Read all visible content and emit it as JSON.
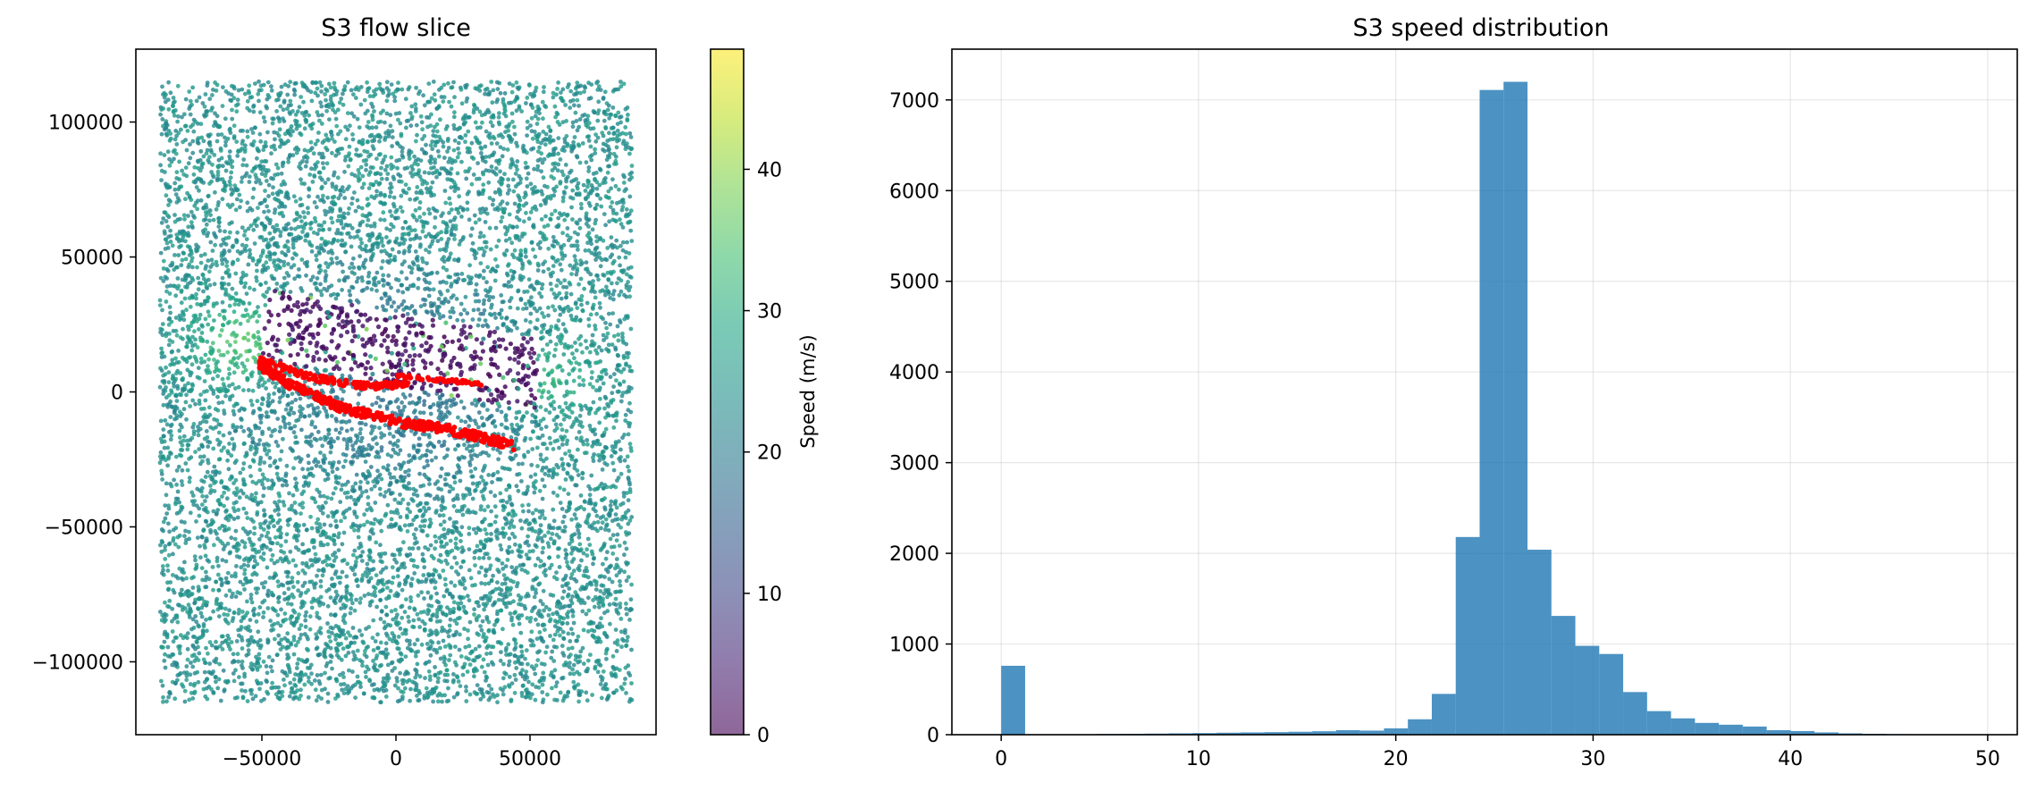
{
  "chart_data": [
    {
      "type": "scatter",
      "title": "S3 flow slice",
      "xlabel": "",
      "ylabel": "",
      "xlim": [
        -97000,
        97000
      ],
      "ylim": [
        -127000,
        127000
      ],
      "xticks": [
        -50000,
        0,
        50000
      ],
      "xtick_labels": [
        "−50000",
        "0",
        "50000"
      ],
      "yticks": [
        -100000,
        -50000,
        0,
        50000,
        100000
      ],
      "ytick_labels": [
        "−100000",
        "−50000",
        "0",
        "50000",
        "100000"
      ],
      "domain_x": [
        -88000,
        88000
      ],
      "domain_y": [
        -115000,
        115000
      ],
      "colorbar": {
        "label": "Speed (m/s)",
        "range": [
          0,
          48.5
        ],
        "ticks": [
          0,
          10,
          20,
          30,
          40
        ],
        "tick_labels": [
          "0",
          "10",
          "20",
          "30",
          "40"
        ],
        "colormap": "viridis",
        "alpha": 0.6
      },
      "point_count_approx": 20000,
      "body_region": {
        "name": "S3 body (low-speed points)",
        "corners": [
          [
            -47000,
            38000
          ],
          [
            53000,
            20000
          ],
          [
            52000,
            -8000
          ],
          [
            -51000,
            13000
          ]
        ],
        "speed_range": [
          0,
          5
        ]
      },
      "surface_series": {
        "name": "surface points",
        "color": "#ff0000",
        "lower_edge": [
          [
            -51000,
            10000
          ],
          [
            -40000,
            3000
          ],
          [
            -20000,
            -6000
          ],
          [
            0,
            -11000
          ],
          [
            20000,
            -14000
          ],
          [
            44000,
            -20000
          ]
        ],
        "upper_edge": [
          [
            -51000,
            12000
          ],
          [
            -30000,
            5000
          ],
          [
            -10000,
            2000
          ],
          [
            5000,
            3000
          ]
        ],
        "mid_segment": [
          [
            0,
            6000
          ],
          [
            32000,
            3000
          ]
        ]
      }
    },
    {
      "type": "bar",
      "title": "S3 speed distribution",
      "xlabel": "",
      "ylabel": "",
      "xlim": [
        -2.5,
        51.5
      ],
      "ylim": [
        0,
        7560
      ],
      "xticks": [
        0,
        10,
        20,
        30,
        40,
        50
      ],
      "xtick_labels": [
        "0",
        "10",
        "20",
        "30",
        "40",
        "50"
      ],
      "yticks": [
        0,
        1000,
        2000,
        3000,
        4000,
        5000,
        6000,
        7000
      ],
      "ytick_labels": [
        "0",
        "1000",
        "2000",
        "3000",
        "4000",
        "5000",
        "6000",
        "7000"
      ],
      "bar_color": "#1f77b4",
      "bar_alpha": 0.8,
      "bin_start": 0,
      "bin_width": 1.2125,
      "values": [
        760,
        0,
        0,
        5,
        8,
        10,
        12,
        15,
        18,
        22,
        25,
        28,
        32,
        38,
        50,
        45,
        70,
        170,
        450,
        2180,
        7110,
        7200,
        2040,
        1310,
        980,
        890,
        470,
        260,
        180,
        130,
        110,
        90,
        50,
        40,
        25,
        15,
        10,
        6,
        4,
        3
      ]
    }
  ]
}
